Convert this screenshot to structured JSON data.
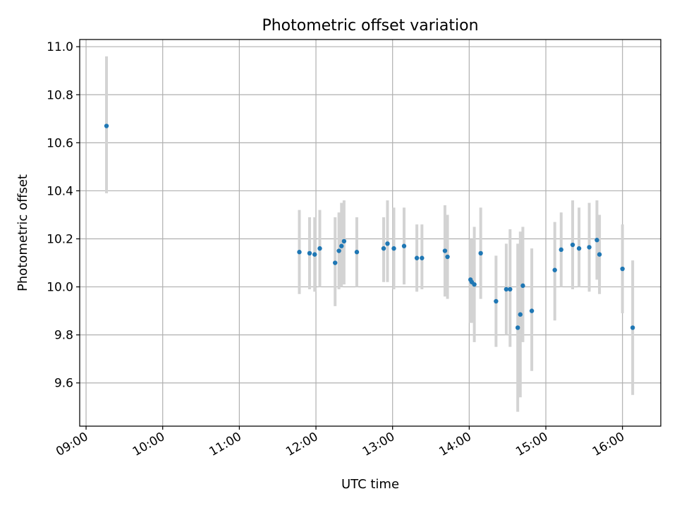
{
  "chart_data": {
    "type": "scatter",
    "title": "Photometric offset variation",
    "xlabel": "UTC time",
    "ylabel": "Photometric offset",
    "x_axis_type": "time",
    "xlim": [
      "08:55",
      "16:30"
    ],
    "ylim": [
      9.42,
      11.03
    ],
    "x_ticks": [
      "09:00",
      "10:00",
      "11:00",
      "12:00",
      "13:00",
      "14:00",
      "15:00",
      "16:00"
    ],
    "y_ticks": [
      "9.6",
      "9.8",
      "10.0",
      "10.2",
      "10.4",
      "10.6",
      "10.8",
      "11.0"
    ],
    "grid": true,
    "marker_color": "#1f77b4",
    "errorbar_color": "#d3d3d3",
    "points": [
      {
        "x": "09:16",
        "y": 10.67,
        "ylow": 10.39,
        "yhigh": 10.96
      },
      {
        "x": "11:47",
        "y": 10.145,
        "ylow": 9.97,
        "yhigh": 10.32
      },
      {
        "x": "11:55",
        "y": 10.14,
        "ylow": 9.99,
        "yhigh": 10.29
      },
      {
        "x": "11:59",
        "y": 10.135,
        "ylow": 9.98,
        "yhigh": 10.29
      },
      {
        "x": "12:03",
        "y": 10.16,
        "ylow": 10.0,
        "yhigh": 10.32
      },
      {
        "x": "12:15",
        "y": 10.1,
        "ylow": 9.92,
        "yhigh": 10.29
      },
      {
        "x": "12:18",
        "y": 10.15,
        "ylow": 9.99,
        "yhigh": 10.31
      },
      {
        "x": "12:20",
        "y": 10.17,
        "ylow": 10.0,
        "yhigh": 10.35
      },
      {
        "x": "12:22",
        "y": 10.19,
        "ylow": 10.01,
        "yhigh": 10.36
      },
      {
        "x": "12:32",
        "y": 10.145,
        "ylow": 10.0,
        "yhigh": 10.29
      },
      {
        "x": "12:53",
        "y": 10.16,
        "ylow": 10.02,
        "yhigh": 10.29
      },
      {
        "x": "12:56",
        "y": 10.18,
        "ylow": 10.02,
        "yhigh": 10.36
      },
      {
        "x": "13:01",
        "y": 10.16,
        "ylow": 9.99,
        "yhigh": 10.33
      },
      {
        "x": "13:09",
        "y": 10.17,
        "ylow": 10.01,
        "yhigh": 10.33
      },
      {
        "x": "13:19",
        "y": 10.12,
        "ylow": 9.98,
        "yhigh": 10.26
      },
      {
        "x": "13:23",
        "y": 10.12,
        "ylow": 9.99,
        "yhigh": 10.26
      },
      {
        "x": "13:41",
        "y": 10.15,
        "ylow": 9.96,
        "yhigh": 10.34
      },
      {
        "x": "13:43",
        "y": 10.125,
        "ylow": 9.95,
        "yhigh": 10.3
      },
      {
        "x": "14:01",
        "y": 10.03,
        "ylow": 9.85,
        "yhigh": 10.2
      },
      {
        "x": "14:02",
        "y": 10.02,
        "ylow": 9.85,
        "yhigh": 10.2
      },
      {
        "x": "14:04",
        "y": 10.01,
        "ylow": 9.77,
        "yhigh": 10.25
      },
      {
        "x": "14:09",
        "y": 10.14,
        "ylow": 9.95,
        "yhigh": 10.33
      },
      {
        "x": "14:21",
        "y": 9.94,
        "ylow": 9.75,
        "yhigh": 10.13
      },
      {
        "x": "14:29",
        "y": 9.99,
        "ylow": 9.8,
        "yhigh": 10.18
      },
      {
        "x": "14:32",
        "y": 9.99,
        "ylow": 9.75,
        "yhigh": 10.24
      },
      {
        "x": "14:38",
        "y": 9.83,
        "ylow": 9.48,
        "yhigh": 10.18
      },
      {
        "x": "14:40",
        "y": 9.885,
        "ylow": 9.54,
        "yhigh": 10.23
      },
      {
        "x": "14:42",
        "y": 10.005,
        "ylow": 9.77,
        "yhigh": 10.25
      },
      {
        "x": "14:49",
        "y": 9.9,
        "ylow": 9.65,
        "yhigh": 10.16
      },
      {
        "x": "15:07",
        "y": 10.07,
        "ylow": 9.86,
        "yhigh": 10.27
      },
      {
        "x": "15:12",
        "y": 10.155,
        "ylow": 10.0,
        "yhigh": 10.31
      },
      {
        "x": "15:21",
        "y": 10.175,
        "ylow": 9.99,
        "yhigh": 10.36
      },
      {
        "x": "15:26",
        "y": 10.16,
        "ylow": 10.0,
        "yhigh": 10.33
      },
      {
        "x": "15:34",
        "y": 10.165,
        "ylow": 9.98,
        "yhigh": 10.35
      },
      {
        "x": "15:40",
        "y": 10.195,
        "ylow": 10.03,
        "yhigh": 10.36
      },
      {
        "x": "15:42",
        "y": 10.135,
        "ylow": 9.97,
        "yhigh": 10.3
      },
      {
        "x": "16:00",
        "y": 10.075,
        "ylow": 9.89,
        "yhigh": 10.26
      },
      {
        "x": "16:08",
        "y": 9.83,
        "ylow": 9.55,
        "yhigh": 10.11
      }
    ]
  }
}
